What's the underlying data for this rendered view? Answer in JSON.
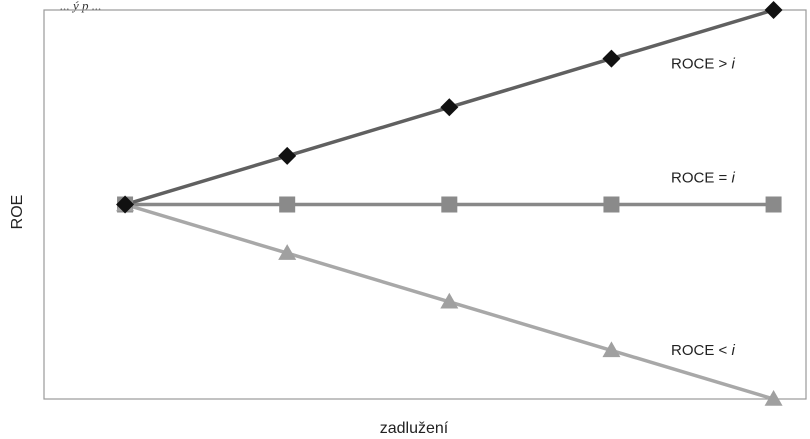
{
  "chart_data": {
    "type": "line",
    "title": "",
    "caption_fragment": "... ý p ...",
    "xlabel": "zadlužení",
    "ylabel": "ROE",
    "x": [
      0,
      1,
      2,
      3,
      4
    ],
    "xlim": [
      -0.5,
      4.2
    ],
    "ylim": [
      -4.0,
      4.0
    ],
    "grid": false,
    "legend": "none",
    "series": [
      {
        "name": "ROCE > i",
        "label_prefix": "ROCE > ",
        "label_var": "i",
        "values": [
          0,
          1,
          2,
          3,
          4
        ],
        "color": "#606060",
        "marker": "diamond",
        "marker_color": "#111111"
      },
      {
        "name": "ROCE = i",
        "label_prefix": "ROCE = ",
        "label_var": "i",
        "values": [
          0,
          0,
          0,
          0,
          0
        ],
        "color": "#888888",
        "marker": "square",
        "marker_color": "#8a8a8a"
      },
      {
        "name": "ROCE < i",
        "label_prefix": "ROCE < ",
        "label_var": "i",
        "values": [
          0,
          -1,
          -2,
          -3,
          -4
        ],
        "color": "#a8a8a8",
        "marker": "triangle",
        "marker_color": "#a0a0a0"
      }
    ]
  }
}
